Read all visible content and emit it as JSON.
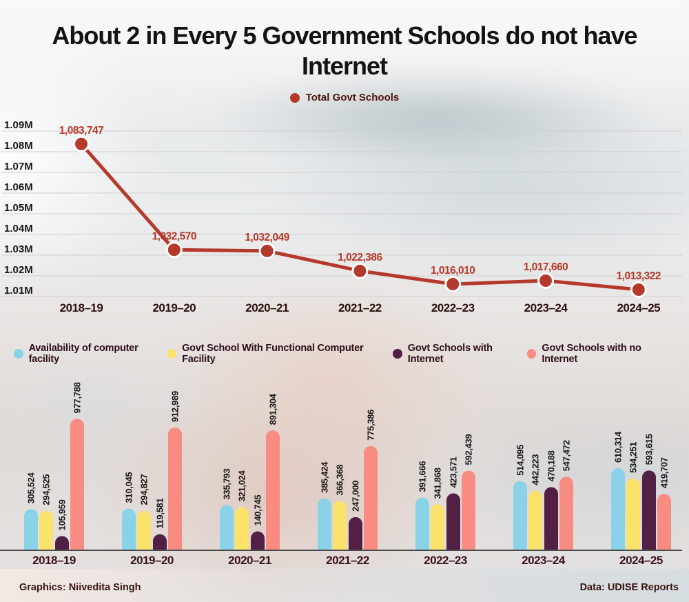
{
  "title": {
    "line1": "About 2 in Every 5 Government Schools do not have",
    "line2": "Internet"
  },
  "colors": {
    "line": "#b5392b",
    "blue": "#8ad2e8",
    "yellow": "#fbe26b",
    "purple": "#522045",
    "salmon": "#f88c82"
  },
  "chart_data": [
    {
      "type": "line",
      "legend": "Total Govt Schools",
      "series_color": "line",
      "categories": [
        "2018–19",
        "2019–20",
        "2020–21",
        "2021–22",
        "2022–23",
        "2023–24",
        "2024–25"
      ],
      "values": [
        1083747,
        1032570,
        1032049,
        1022386,
        1016010,
        1017660,
        1013322
      ],
      "yticks": [
        "1.09M",
        "1.08M",
        "1.07M",
        "1.06M",
        "1.05M",
        "1.04M",
        "1.03M",
        "1.02M",
        "1.01M"
      ],
      "ylim": [
        1010000,
        1090000
      ],
      "grid": true,
      "legend_position": "top"
    },
    {
      "type": "bar",
      "categories": [
        "2018–19",
        "2019–20",
        "2020–21",
        "2021–22",
        "2022–23",
        "2023–24",
        "2024–25"
      ],
      "series": [
        {
          "name": "Availability of computer facility",
          "color": "blue",
          "values": [
            305524,
            310045,
            335793,
            385424,
            391666,
            514095,
            610314
          ]
        },
        {
          "name": "Govt School With Functional Computer Facility",
          "color": "yellow",
          "values": [
            294525,
            294827,
            321024,
            366368,
            341868,
            442223,
            534251
          ]
        },
        {
          "name": "Govt Schools with Internet",
          "color": "purple",
          "values": [
            105959,
            119581,
            140745,
            247000,
            423571,
            470188,
            593615
          ]
        },
        {
          "name": "Govt Schools with no Internet",
          "color": "salmon",
          "values": [
            977788,
            912989,
            891304,
            775386,
            592439,
            547472,
            419707
          ]
        }
      ],
      "grid": false,
      "legend_position": "top"
    }
  ],
  "footer": {
    "left": "Graphics: Niivedita Singh",
    "right": "Data: UDISE Reports"
  }
}
